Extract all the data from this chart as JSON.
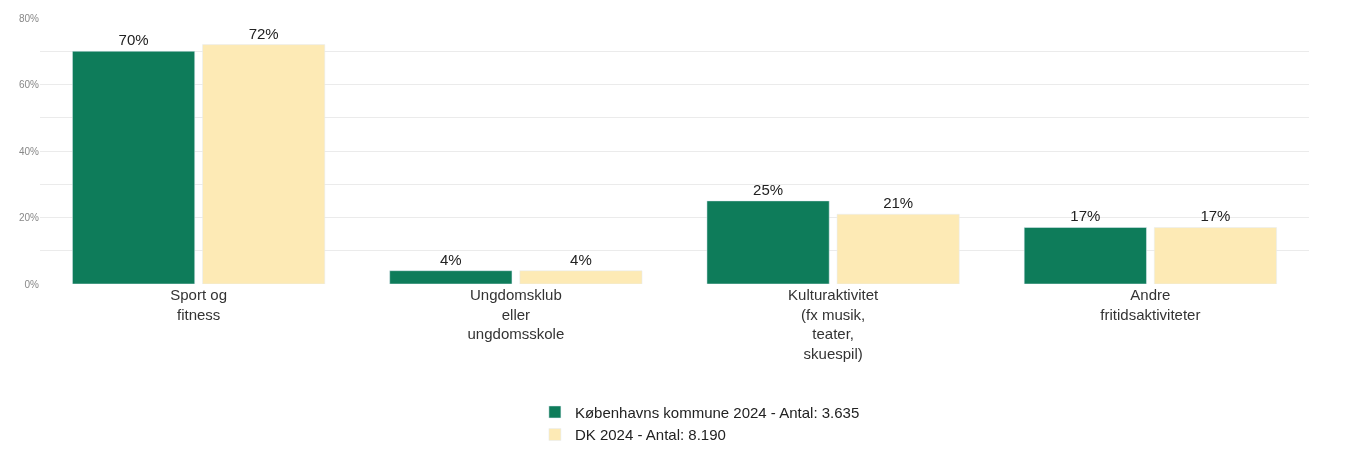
{
  "chart_data": {
    "type": "bar",
    "categories": [
      "Sport og\nfitness",
      "Ungdomsklub\neller\nungdomsskole",
      "Kulturaktivitet\n(fx musik,\nteater,\nskuespil)",
      "Andre\nfritidsaktiviteter"
    ],
    "series": [
      {
        "name": "Københavns kommune 2024 - Antal: 3.635",
        "color": "#0e7c5a",
        "values": [
          70,
          4,
          25,
          17
        ],
        "value_labels": [
          "70%",
          "4%",
          "25%",
          "17%"
        ]
      },
      {
        "name": "DK 2024 - Antal: 8.190",
        "color": "#fdeab5",
        "values": [
          72,
          4,
          21,
          17
        ],
        "value_labels": [
          "72%",
          "4%",
          "21%",
          "17%"
        ]
      }
    ],
    "ylim": [
      0,
      80
    ],
    "yticks": [
      {
        "value": 0,
        "label": "0%"
      },
      {
        "value": 10,
        "label": null
      },
      {
        "value": 20,
        "label": "20%"
      },
      {
        "value": 30,
        "label": null
      },
      {
        "value": 40,
        "label": "40%"
      },
      {
        "value": 50,
        "label": null
      },
      {
        "value": 60,
        "label": "60%"
      },
      {
        "value": 70,
        "label": null
      },
      {
        "value": 80,
        "label": "80%"
      }
    ],
    "grid": "y",
    "legend": "bottom"
  }
}
